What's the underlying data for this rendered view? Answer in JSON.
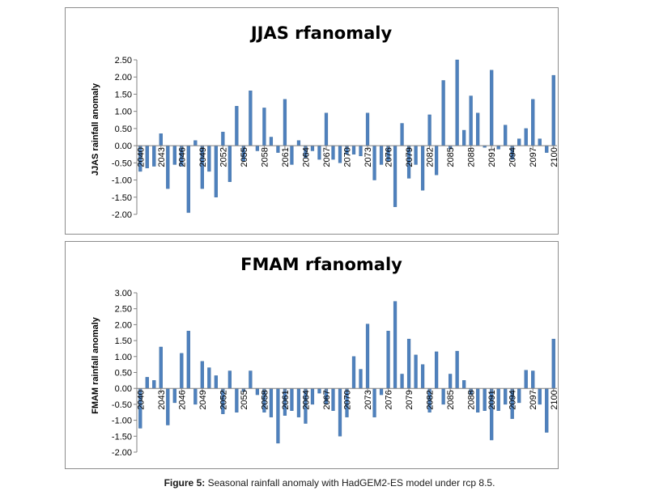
{
  "caption": {
    "label": "Figure 5:",
    "text": "Seasonal rainfall anomaly with HadGEM2-ES model under rcp 8.5."
  },
  "colors": {
    "bar": "#4f81bd",
    "bar_edge": "#3a6a9e",
    "axis": "#808080"
  },
  "chart_data": [
    {
      "type": "bar",
      "title": "JJAS rfanomaly",
      "ylabel": "JJAS rainfall anomaly",
      "xlabel": "",
      "ylim": [
        -2.0,
        2.5
      ],
      "yticks": [
        2.5,
        2.0,
        1.5,
        1.0,
        0.5,
        0.0,
        -0.5,
        -1.0,
        -1.5,
        -2.0
      ],
      "ytick_labels": [
        "2.50",
        "2.00",
        "1.50",
        "1.00",
        "0.50",
        "0.00",
        "-0.50",
        "-1.00",
        "-1.50",
        "-2.00"
      ],
      "categories": [
        2040,
        2041,
        2042,
        2043,
        2044,
        2045,
        2046,
        2047,
        2048,
        2049,
        2050,
        2051,
        2052,
        2053,
        2054,
        2055,
        2056,
        2057,
        2058,
        2059,
        2060,
        2061,
        2062,
        2063,
        2064,
        2065,
        2066,
        2067,
        2068,
        2069,
        2070,
        2071,
        2072,
        2073,
        2074,
        2075,
        2076,
        2077,
        2078,
        2079,
        2080,
        2081,
        2082,
        2083,
        2084,
        2085,
        2086,
        2087,
        2088,
        2089,
        2090,
        2091,
        2092,
        2093,
        2094,
        2095,
        2096,
        2097,
        2098,
        2099,
        2100
      ],
      "xtick_labels": [
        "2040",
        "2043",
        "2046",
        "2049",
        "2052",
        "2055",
        "2058",
        "2061",
        "2064",
        "2067",
        "2070",
        "2073",
        "2076",
        "2079",
        "2082",
        "2085",
        "2088",
        "2091",
        "2094",
        "2097",
        "2100"
      ],
      "values": [
        -0.75,
        -0.65,
        -0.6,
        0.35,
        -1.25,
        -0.55,
        -0.6,
        -1.95,
        0.15,
        -1.25,
        -0.75,
        -1.5,
        0.4,
        -1.05,
        1.15,
        -0.45,
        1.6,
        -0.15,
        1.1,
        0.25,
        -0.2,
        1.35,
        -0.55,
        0.15,
        -0.35,
        -0.15,
        -0.4,
        0.95,
        -0.4,
        -0.5,
        -0.25,
        -0.25,
        -0.3,
        0.95,
        -1.0,
        -0.55,
        -0.45,
        -1.78,
        0.65,
        -0.95,
        -0.55,
        -1.3,
        0.9,
        -0.85,
        1.9,
        -0.1,
        2.5,
        0.45,
        1.45,
        0.95,
        -0.05,
        2.2,
        -0.1,
        0.6,
        -0.4,
        0.2,
        0.5,
        1.35,
        0.2,
        -0.2,
        2.05
      ]
    },
    {
      "type": "bar",
      "title": "FMAM rfanomaly",
      "ylabel": "FMAM rainfall anomaly",
      "xlabel": "",
      "ylim": [
        -2.0,
        3.0
      ],
      "yticks": [
        3.0,
        2.5,
        2.0,
        1.5,
        1.0,
        0.5,
        0.0,
        -0.5,
        -1.0,
        -1.5,
        -2.0
      ],
      "ytick_labels": [
        "3.00",
        "2.50",
        "2.00",
        "1.50",
        "1.00",
        "0.50",
        "0.00",
        "-0.50",
        "-1.00",
        "-1.50",
        "-2.00"
      ],
      "categories": [
        2040,
        2041,
        2042,
        2043,
        2044,
        2045,
        2046,
        2047,
        2048,
        2049,
        2050,
        2051,
        2052,
        2053,
        2054,
        2055,
        2056,
        2057,
        2058,
        2059,
        2060,
        2061,
        2062,
        2063,
        2064,
        2065,
        2066,
        2067,
        2068,
        2069,
        2070,
        2071,
        2072,
        2073,
        2074,
        2075,
        2076,
        2077,
        2078,
        2079,
        2080,
        2081,
        2082,
        2083,
        2084,
        2085,
        2086,
        2087,
        2088,
        2089,
        2090,
        2091,
        2092,
        2093,
        2094,
        2095,
        2096,
        2097,
        2098,
        2099,
        2100
      ],
      "xtick_labels": [
        "2040",
        "2043",
        "2046",
        "2049",
        "2052",
        "2055",
        "2058",
        "2061",
        "2064",
        "2067",
        "2070",
        "2073",
        "2076",
        "2079",
        "2082",
        "2085",
        "2088",
        "2091",
        "2094",
        "2097",
        "2100"
      ],
      "values": [
        -1.25,
        0.35,
        0.25,
        1.3,
        -1.15,
        -0.45,
        1.1,
        1.8,
        -0.5,
        0.85,
        0.65,
        0.4,
        -0.8,
        0.55,
        -0.75,
        -0.1,
        0.55,
        -0.2,
        -0.75,
        -0.9,
        -1.72,
        -0.85,
        -0.7,
        -0.9,
        -1.1,
        -0.5,
        -0.15,
        -0.5,
        -0.7,
        -1.5,
        -0.9,
        1.0,
        0.6,
        2.02,
        -0.9,
        -0.2,
        1.8,
        2.73,
        0.45,
        1.55,
        1.05,
        0.75,
        -0.75,
        1.15,
        -0.5,
        0.45,
        1.17,
        0.25,
        -0.2,
        -0.75,
        -0.7,
        -1.62,
        -0.7,
        -0.5,
        -0.95,
        -0.45,
        0.57,
        0.55,
        -0.5,
        -1.38,
        1.55
      ]
    }
  ]
}
